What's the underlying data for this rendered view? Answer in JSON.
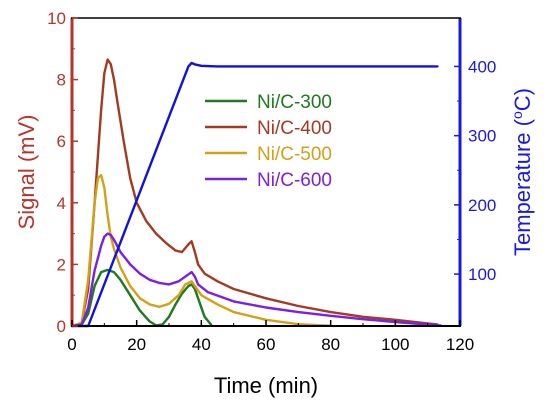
{
  "chart_data": {
    "type": "line",
    "xlabel": "Time (min)",
    "ylabel_left": "Signal (mV)",
    "ylabel_right_prefix": "Temperature (",
    "ylabel_right_sup": "o",
    "ylabel_right_suffix": "C)",
    "xlim": [
      0,
      120
    ],
    "ylim_left": [
      0,
      10
    ],
    "ylim_right": [
      25,
      470
    ],
    "x_ticks": [
      0,
      20,
      40,
      60,
      80,
      100,
      120
    ],
    "y_left_ticks": [
      0,
      2,
      4,
      6,
      8,
      10
    ],
    "y_right_ticks": [
      100,
      200,
      300,
      400
    ],
    "colors": {
      "left_axis": "#b5352a",
      "right_axis": "#1a1adc",
      "bottom_axis": "#000000"
    },
    "legend_position": "center",
    "series": [
      {
        "name": "Ni/C-300",
        "axis": "left",
        "color": "#1e7a1e",
        "x": [
          0,
          3,
          5,
          7,
          9,
          11,
          13,
          15,
          18,
          21,
          24,
          26,
          28,
          30,
          32,
          34,
          36,
          37,
          38,
          39,
          41,
          43
        ],
        "y": [
          0,
          0.05,
          0.4,
          1.3,
          1.75,
          1.82,
          1.75,
          1.5,
          1.0,
          0.5,
          0.15,
          0.02,
          0.05,
          0.3,
          0.7,
          1.05,
          1.3,
          1.35,
          1.2,
          0.9,
          0.3,
          0.05
        ]
      },
      {
        "name": "Ni/C-400",
        "axis": "left",
        "color": "#a33a22",
        "x": [
          0,
          3,
          5,
          7,
          9,
          10,
          11,
          12,
          13,
          14,
          16,
          18,
          20,
          23,
          26,
          29,
          32,
          34,
          36,
          37,
          38,
          39,
          41,
          45,
          50,
          60,
          70,
          80,
          90,
          100,
          110,
          113
        ],
        "y": [
          0,
          0.1,
          1.2,
          4.0,
          7.0,
          8.2,
          8.65,
          8.5,
          8.0,
          7.3,
          6.0,
          4.8,
          4.0,
          3.4,
          3.0,
          2.7,
          2.45,
          2.4,
          2.65,
          2.75,
          2.4,
          2.0,
          1.7,
          1.45,
          1.2,
          0.9,
          0.65,
          0.45,
          0.3,
          0.2,
          0.08,
          0.05
        ]
      },
      {
        "name": "Ni/C-500",
        "axis": "left",
        "color": "#d4a017",
        "x": [
          0,
          3,
          5,
          7,
          8,
          9,
          10,
          11,
          12,
          13,
          15,
          18,
          21,
          24,
          27,
          30,
          33,
          35,
          37,
          38,
          40,
          45,
          50,
          60,
          70,
          80
        ],
        "y": [
          0,
          0.1,
          1.5,
          4.0,
          4.8,
          4.9,
          4.5,
          3.6,
          2.9,
          2.5,
          1.9,
          1.3,
          0.9,
          0.7,
          0.62,
          0.72,
          1.0,
          1.35,
          1.45,
          1.3,
          1.0,
          0.7,
          0.45,
          0.2,
          0.06,
          0.01
        ]
      },
      {
        "name": "Ni/C-600",
        "axis": "left",
        "color": "#7b1fe0",
        "x": [
          0,
          3,
          5,
          7,
          9,
          10,
          11,
          12,
          13,
          15,
          18,
          21,
          24,
          27,
          30,
          33,
          35,
          37,
          38,
          39,
          42,
          50,
          60,
          70,
          80,
          90,
          100,
          110,
          114
        ],
        "y": [
          0,
          0.05,
          0.6,
          1.8,
          2.6,
          2.9,
          3.0,
          2.95,
          2.8,
          2.4,
          2.0,
          1.7,
          1.5,
          1.4,
          1.35,
          1.45,
          1.6,
          1.75,
          1.6,
          1.35,
          1.1,
          0.8,
          0.6,
          0.45,
          0.33,
          0.22,
          0.13,
          0.05,
          0.02
        ]
      },
      {
        "name": "Temperature",
        "axis": "right",
        "color": "#1111dd",
        "x": [
          0,
          5,
          36,
          37,
          38,
          40,
          45,
          60,
          80,
          100,
          113
        ],
        "y": [
          25,
          25,
          400,
          405,
          403,
          401,
          400,
          400,
          400,
          400,
          400
        ]
      }
    ]
  }
}
